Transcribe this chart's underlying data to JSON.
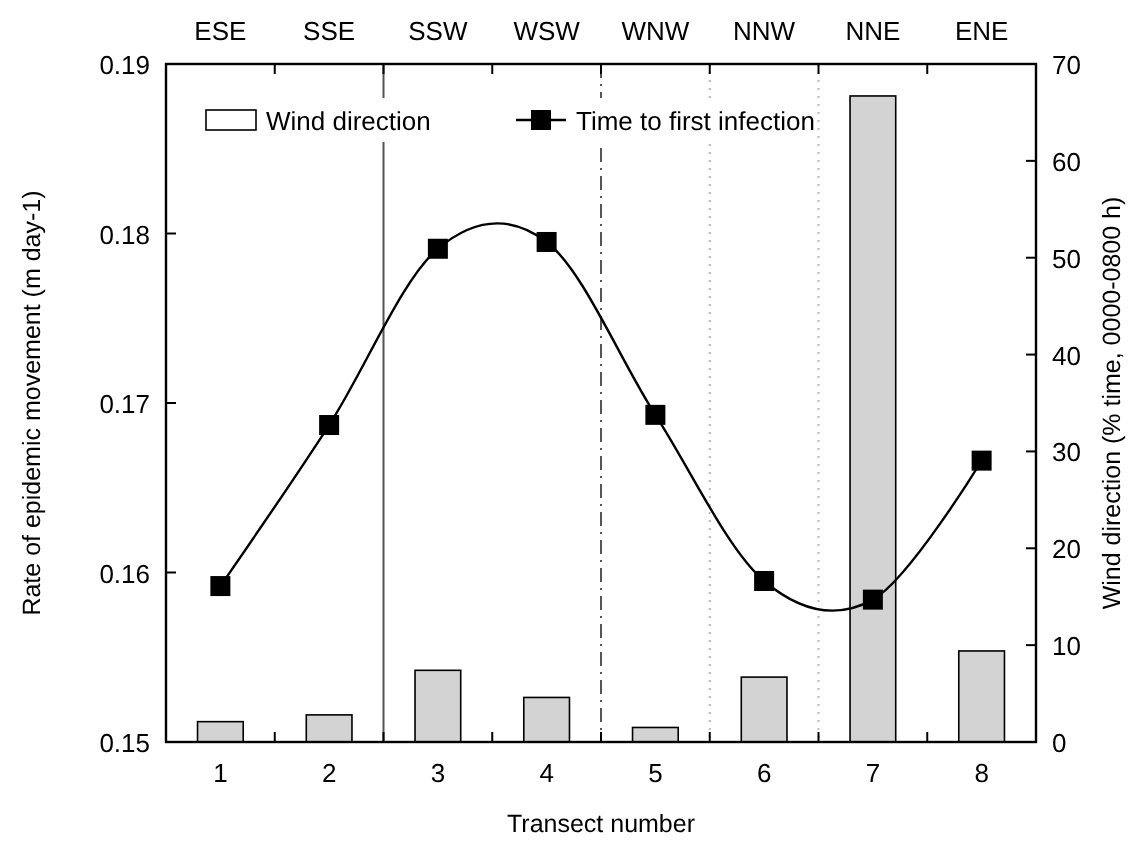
{
  "chart_data": {
    "type": "bar",
    "x": [
      1,
      2,
      3,
      4,
      5,
      6,
      7,
      8
    ],
    "xlim": [
      0.5,
      8.5
    ],
    "xticks": [
      1,
      2,
      3,
      4,
      5,
      6,
      7,
      8,
      {
        "value": 1.5,
        "label": null
      },
      {
        "value": 2.5,
        "label": null
      },
      {
        "value": 3.5,
        "label": null
      },
      {
        "value": 4.5,
        "label": null
      },
      {
        "value": 5.5,
        "label": null
      },
      {
        "value": 6.5,
        "label": null
      },
      {
        "value": 7.5,
        "label": null
      }
    ],
    "annotations": [
      "ESE",
      "SSE",
      "SSW",
      "WSW",
      "WNW",
      "NNW",
      "NNE",
      "ENE"
    ],
    "xlabel": "Transect number",
    "ylabel": "Rate of epidemic movement (m day-1)",
    "y2label": "Wind direction (% time, 0000-0800 h)",
    "ylim": [
      0.15,
      0.19
    ],
    "yticks": [
      0.15,
      0.16,
      0.17,
      0.18,
      0.19
    ],
    "y2lim": [
      0,
      70
    ],
    "y2ticks": [
      0,
      10,
      20,
      30,
      40,
      50,
      60,
      70
    ],
    "series": [
      {
        "name": "Wind direction",
        "axis": "y2",
        "color": "#d3d3d3",
        "values": [
          2.1,
          2.8,
          7.4,
          4.6,
          1.5,
          6.7,
          66.7,
          9.4
        ]
      },
      {
        "name": "Time to first infection",
        "type": "line",
        "axis": "y",
        "color": "#000000",
        "marker": "square",
        "values": [
          0.1592,
          0.1687,
          0.1791,
          0.1795,
          0.1693,
          0.1595,
          0.1584,
          0.1666
        ]
      }
    ],
    "ref_lines": [
      {
        "axis": "x",
        "value": 2.5,
        "color": "#555555",
        "line_style": "solid"
      },
      {
        "axis": "x",
        "value": 4.5,
        "color": "#555555",
        "line_style": "dashed"
      },
      {
        "axis": "x",
        "value": 5.5,
        "color": "#bbbbbb",
        "line_style": "dotted"
      },
      {
        "axis": "x",
        "value": 6.5,
        "color": "#bbbbbb",
        "line_style": "dotted"
      }
    ],
    "legend": "top left",
    "grid": false
  }
}
